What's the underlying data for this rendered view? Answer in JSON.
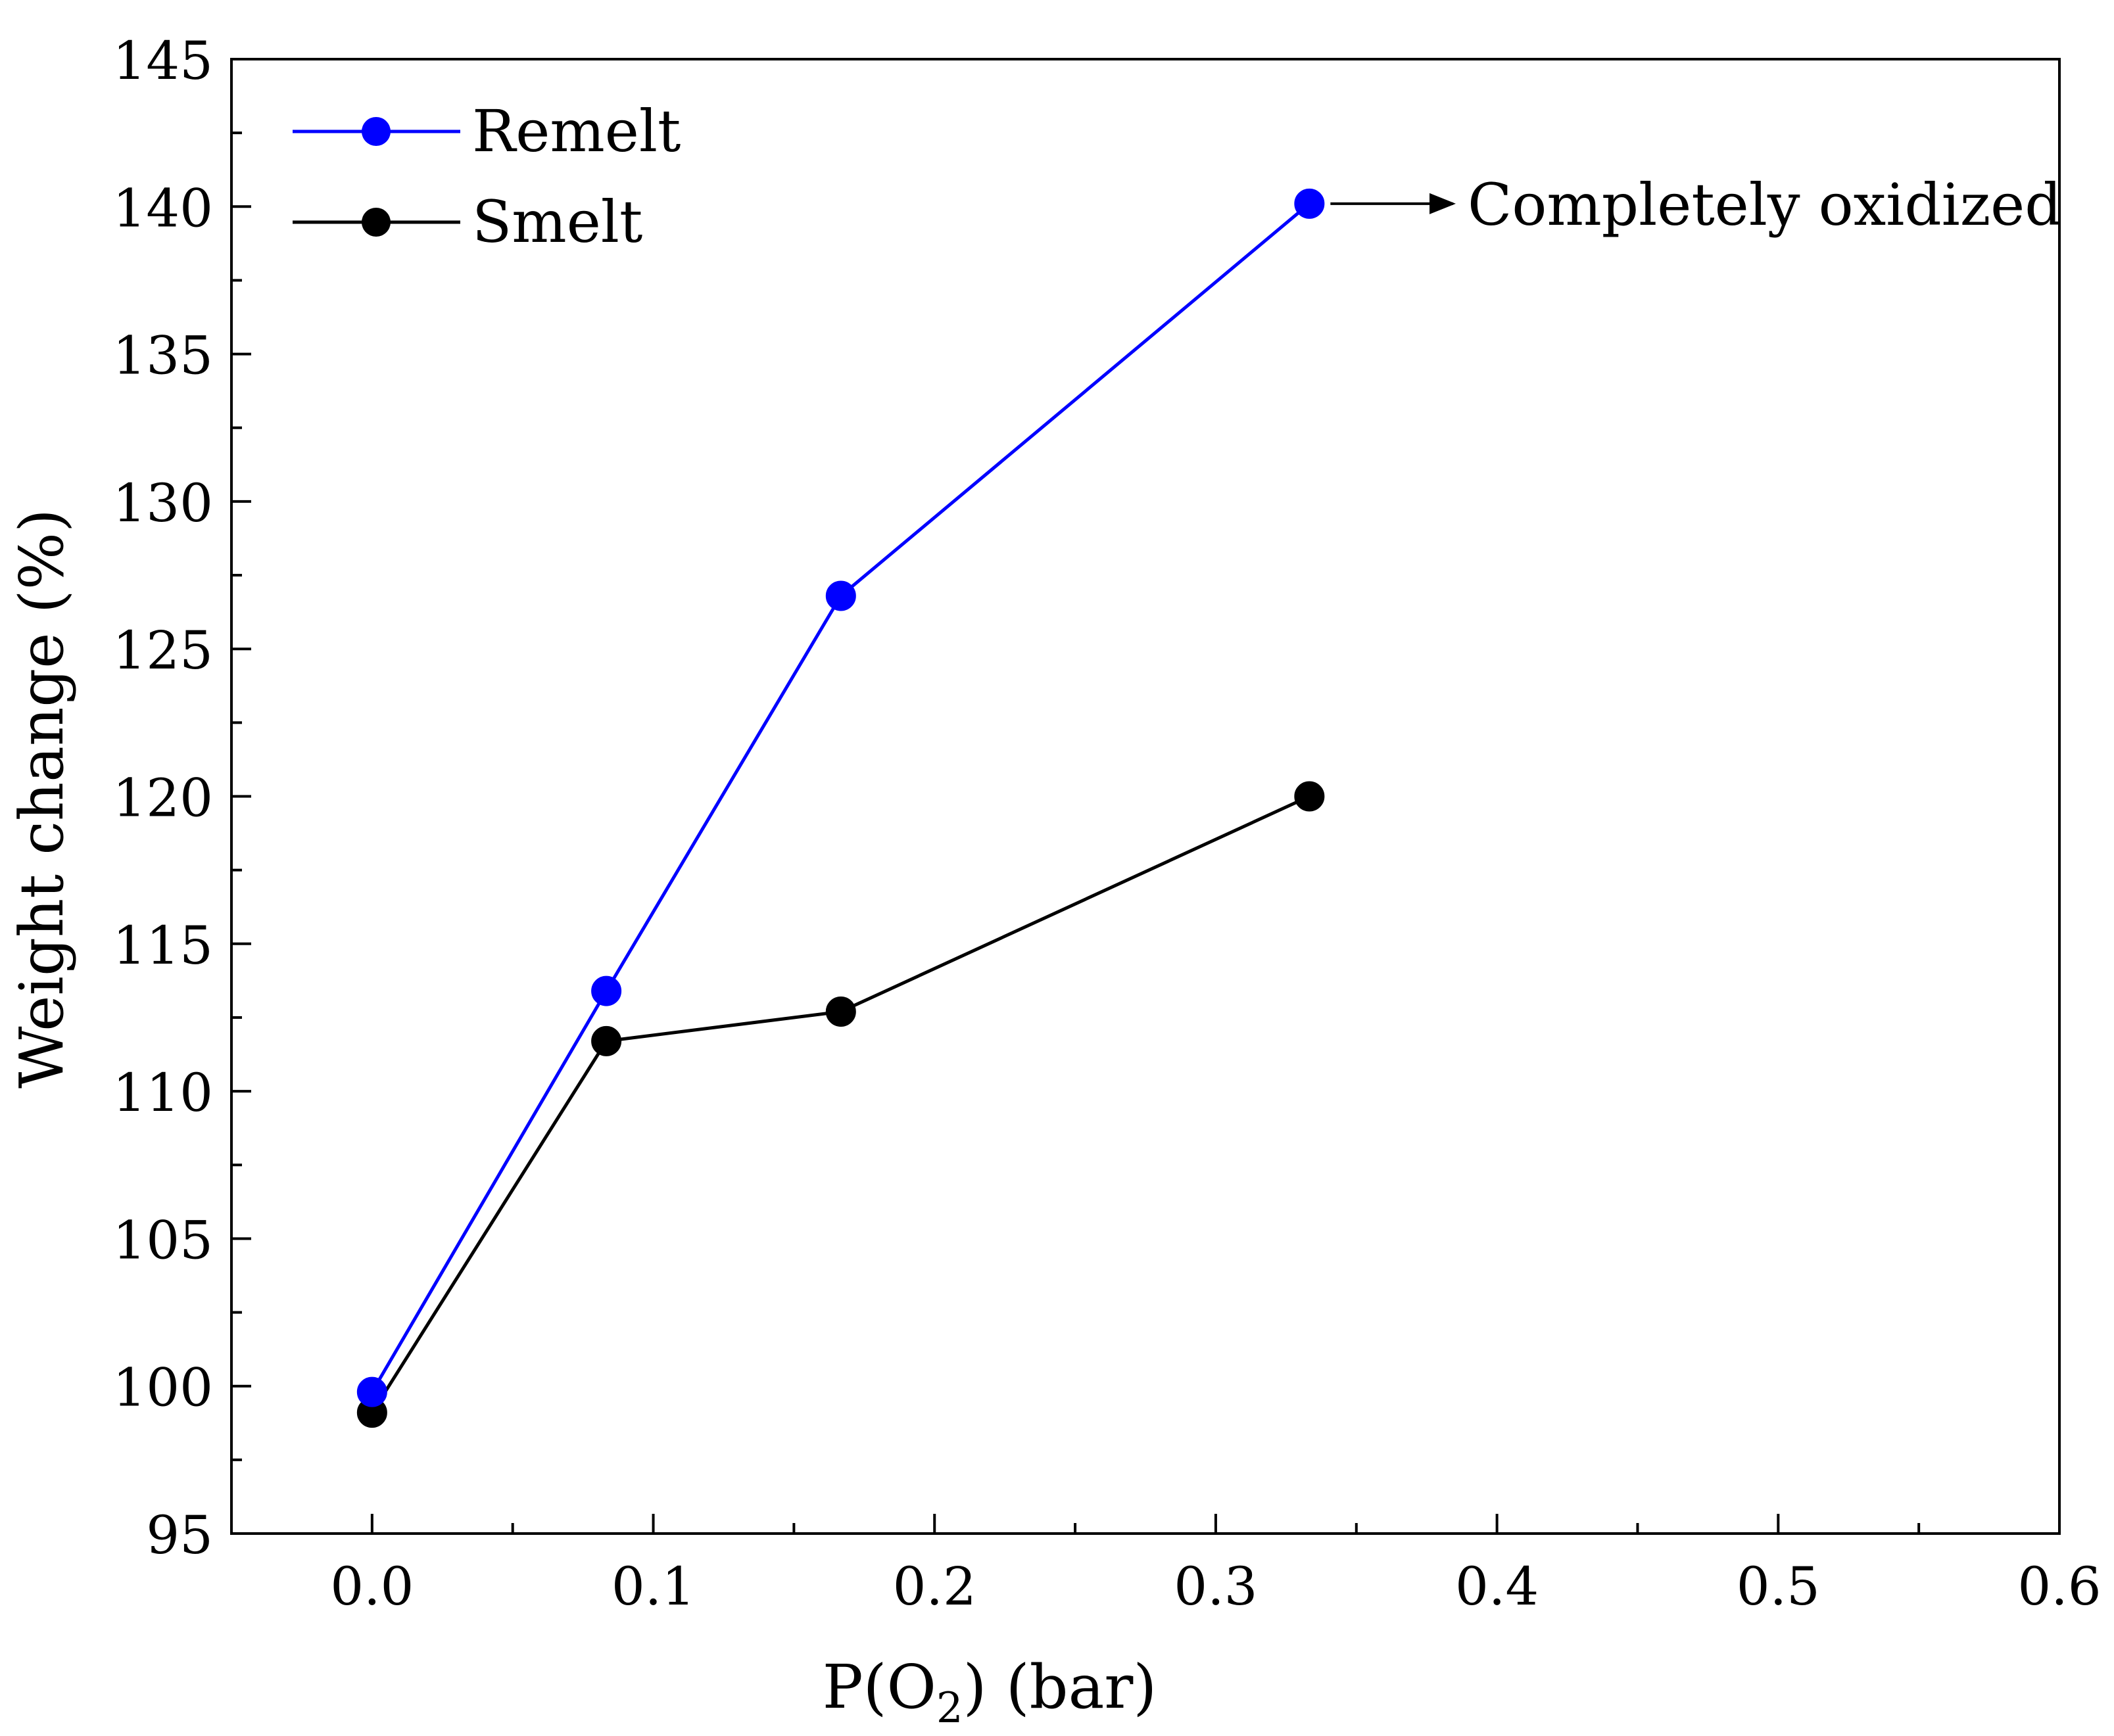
{
  "chart_data": {
    "type": "line",
    "title": "",
    "xlabel": {
      "prefix": "P(O",
      "subscript": "2",
      "suffix": ") (bar)"
    },
    "ylabel": "Weight change (%)",
    "xlim": [
      -0.05,
      0.6
    ],
    "ylim": [
      95,
      145
    ],
    "x_ticks": [
      0.0,
      0.1,
      0.2,
      0.3,
      0.4,
      0.5,
      0.6
    ],
    "x_tick_labels": [
      "0.0",
      "0.1",
      "0.2",
      "0.3",
      "0.4",
      "0.5",
      "0.6"
    ],
    "y_ticks": [
      95,
      100,
      105,
      110,
      115,
      120,
      125,
      130,
      135,
      140,
      145
    ],
    "y_tick_labels": [
      "95",
      "100",
      "105",
      "110",
      "115",
      "120",
      "125",
      "130",
      "135",
      "140",
      "145"
    ],
    "grid": false,
    "legend_position": "top-left",
    "series": [
      {
        "name": "Remelt",
        "color": "#0000ff",
        "marker_color": "#0000ff",
        "x": [
          0.0,
          0.0833,
          0.1667,
          0.3333
        ],
        "y": [
          99.8,
          113.4,
          126.8,
          140.1
        ]
      },
      {
        "name": "Smelt",
        "color": "#000000",
        "marker_color": "#000000",
        "x": [
          0.0,
          0.0833,
          0.1667,
          0.3333
        ],
        "y": [
          99.1,
          111.7,
          112.7,
          120.0
        ]
      }
    ],
    "annotation": {
      "text": "Completely oxidized",
      "series": "Remelt",
      "point_index": 3
    }
  }
}
